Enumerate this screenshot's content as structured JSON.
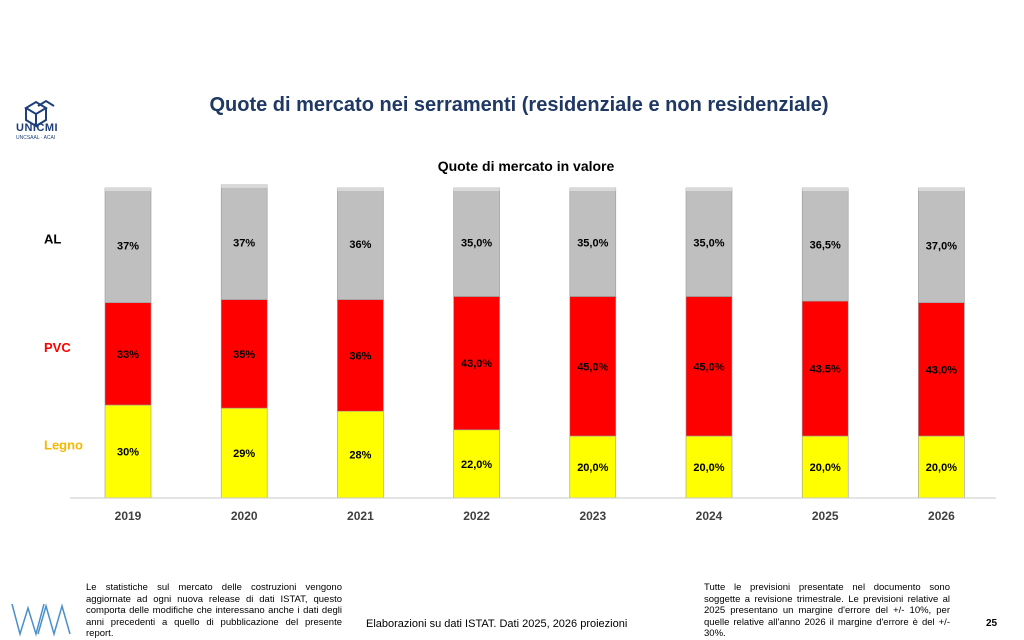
{
  "header": {
    "logo_name": "UNICMI",
    "logo_sub": "UNCSAAL · ACAI",
    "title": "Quote di mercato nei serramenti (residenziale e non residenziale)"
  },
  "chart_data": {
    "type": "bar",
    "stacked": true,
    "title": "Quote di mercato in valore",
    "categories": [
      "2019",
      "2020",
      "2021",
      "2022",
      "2023",
      "2024",
      "2025",
      "2026"
    ],
    "series": [
      {
        "name": "Legno",
        "color": "#ffff00",
        "label_color": "#f5b800",
        "values": [
          30,
          29,
          28,
          22,
          20,
          20,
          20,
          20
        ],
        "labels": [
          "30%",
          "29%",
          "28%",
          "22,0%",
          "20,0%",
          "20,0%",
          "20,0%",
          "20,0%"
        ]
      },
      {
        "name": "PVC",
        "color": "#ff0000",
        "label_color": "#ff0000",
        "values": [
          33,
          35,
          36,
          43,
          45,
          45,
          43.5,
          43
        ],
        "labels": [
          "33%",
          "35%",
          "36%",
          "43,0%",
          "45,0%",
          "45,0%",
          "43,5%",
          "43,0%"
        ]
      },
      {
        "name": "AL",
        "color": "#bfbfbf",
        "label_color": "#000000",
        "values": [
          37,
          37,
          36,
          35,
          35,
          35,
          36.5,
          37
        ],
        "labels": [
          "37%",
          "37%",
          "36%",
          "35,0%",
          "35,0%",
          "35,0%",
          "36,5%",
          "37,0%"
        ]
      }
    ],
    "ylim": [
      0,
      100
    ],
    "grid": false,
    "legend": "left"
  },
  "footer": {
    "left_note": "Le statistiche sul mercato delle costruzioni vengono aggiornate ad ogni nuova release di dati ISTAT, questo comporta delle modifiche che interessano anche i dati degli anni precedenti a quello di pubblicazione del presente report.",
    "center_note": "Elaborazioni su dati ISTAT. Dati 2025, 2026 proiezioni",
    "right_note": "Tutte le previsioni presentate nel documento sono soggette a revisione trimestrale. Le previsioni relative al 2025 presentano un margine d'errore del +/- 10%, per quelle relative all'anno 2026 il margine d'errore è del +/- 30%.",
    "page_number": "25"
  }
}
